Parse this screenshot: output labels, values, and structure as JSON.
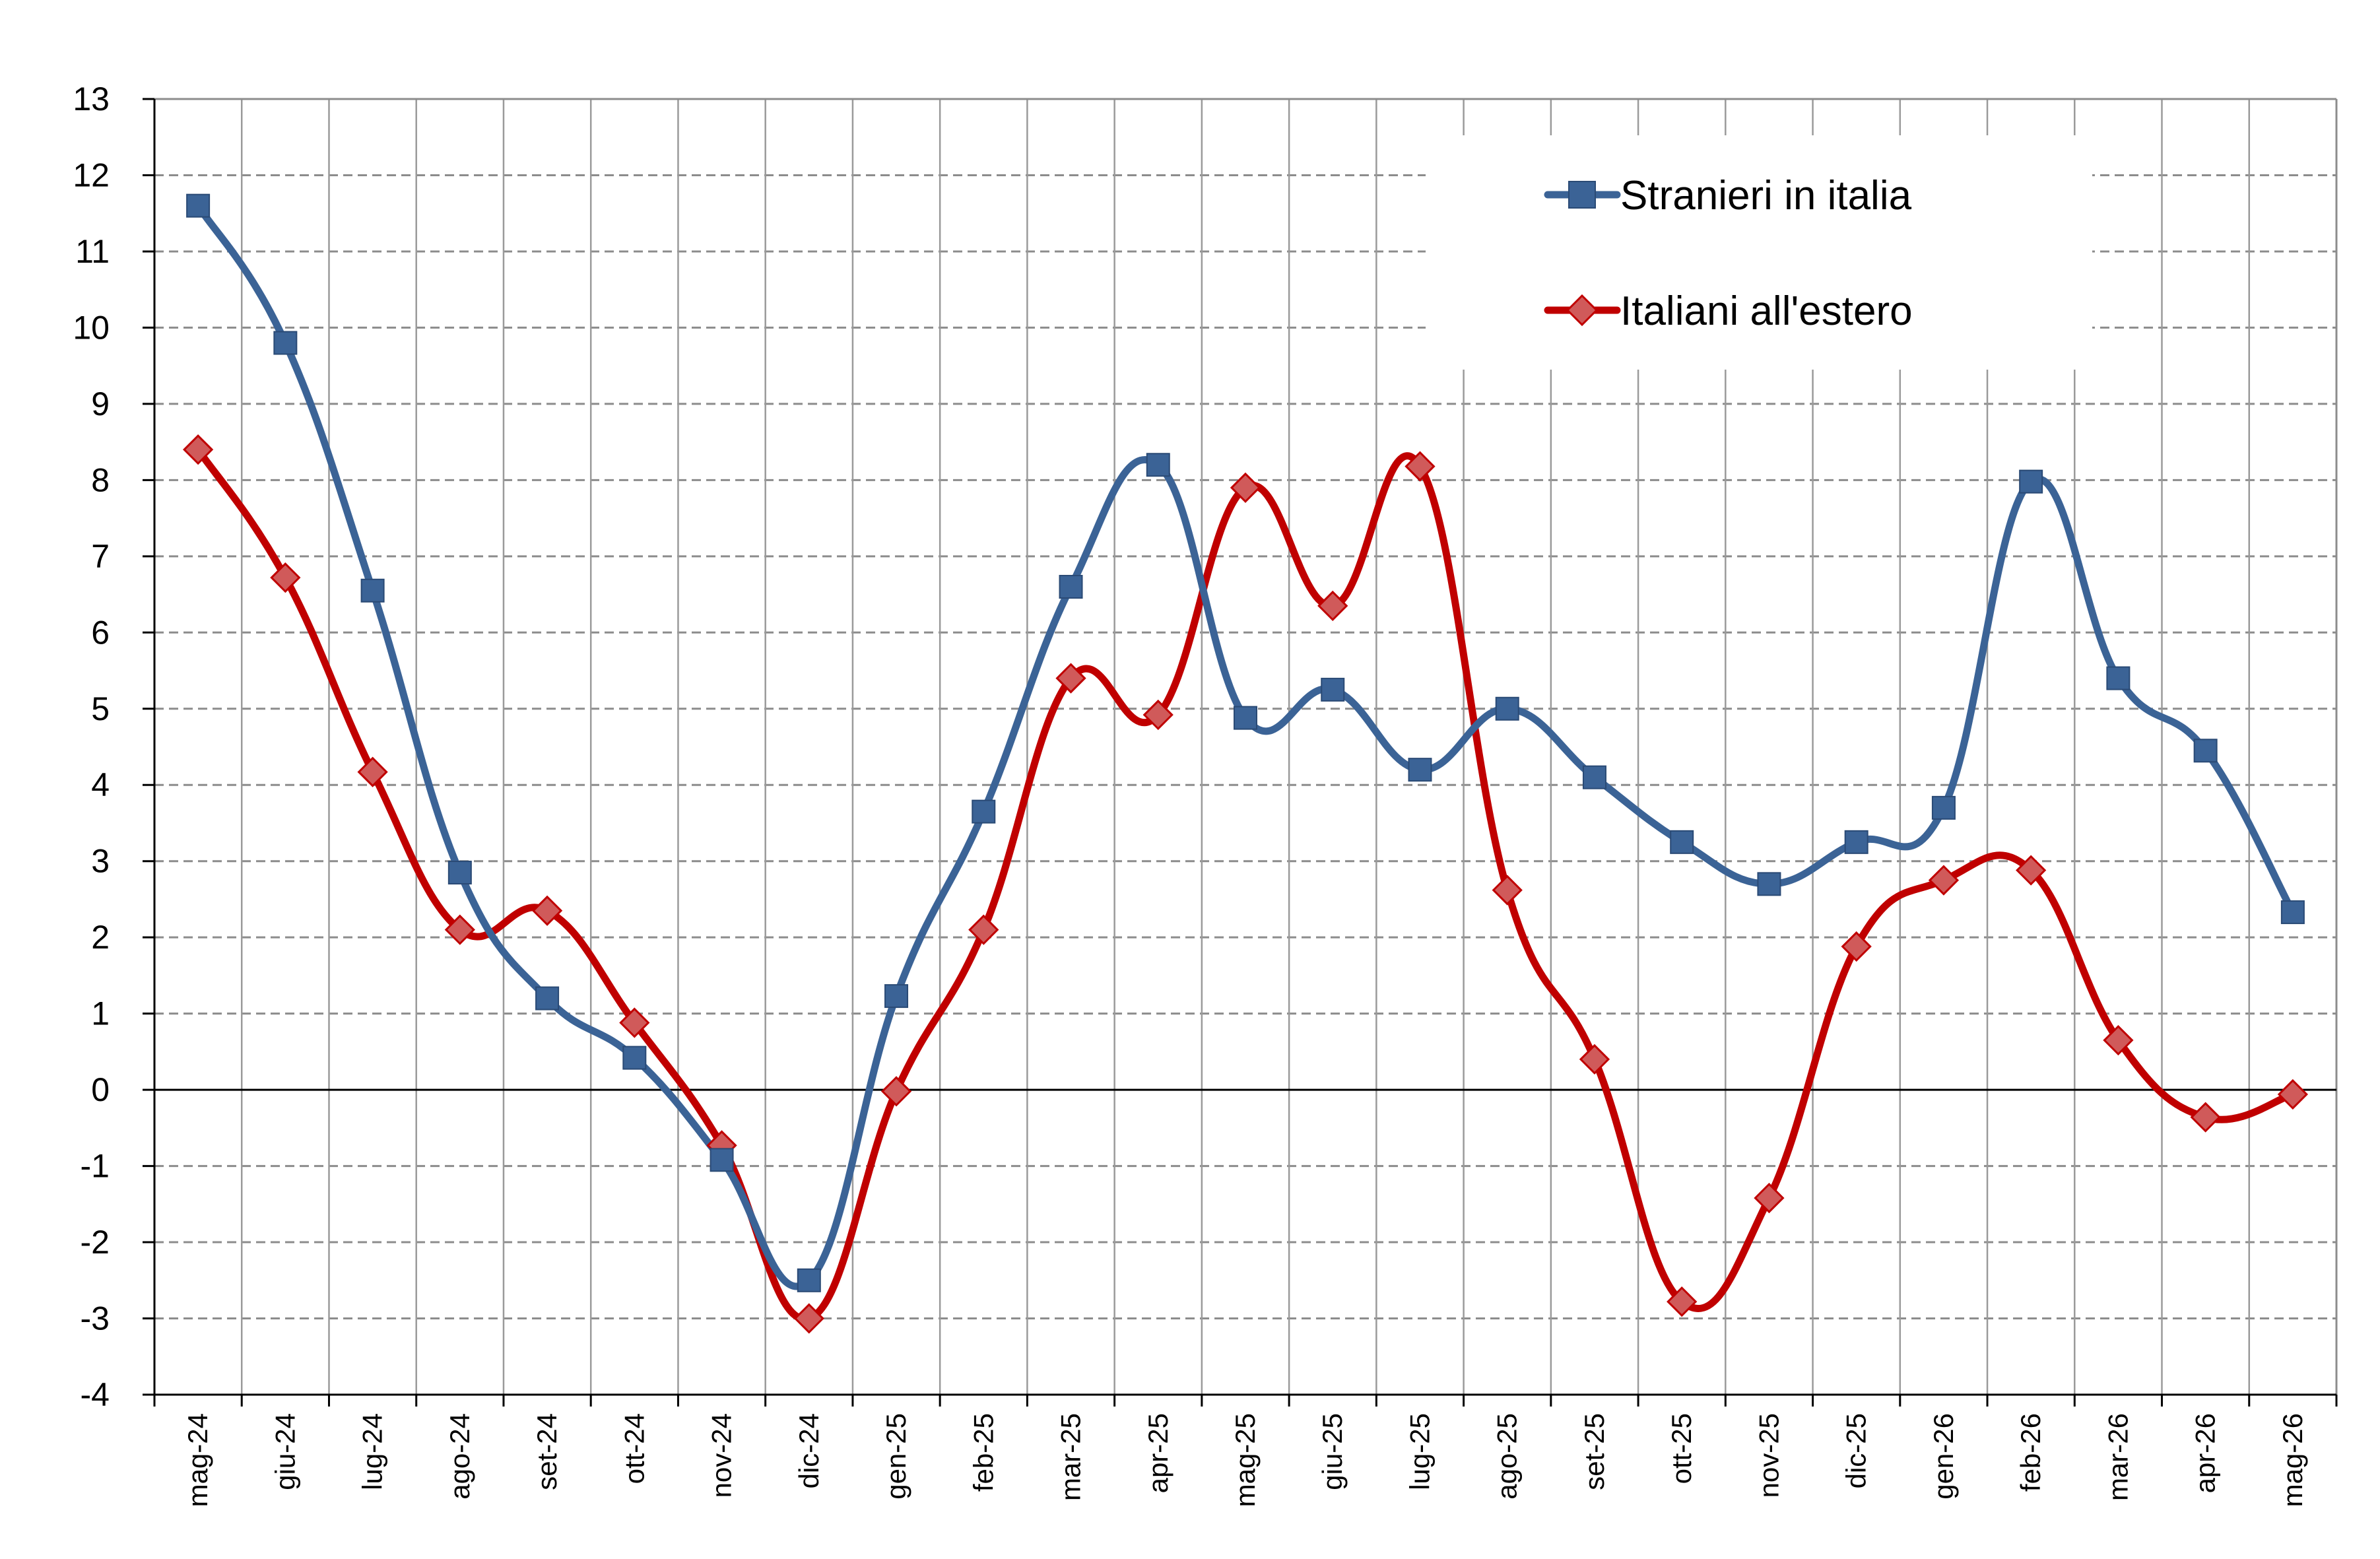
{
  "chart_data": {
    "type": "line",
    "title": "",
    "xlabel": "",
    "ylabel": "",
    "ylim": [
      -4,
      13
    ],
    "yticks": [
      -4,
      -3,
      -2,
      -1,
      0,
      1,
      2,
      3,
      4,
      5,
      6,
      7,
      8,
      9,
      10,
      11,
      12,
      13
    ],
    "grid": true,
    "smoothed": true,
    "legend_position": "top-right",
    "categories": [
      "mag-24",
      "giu-24",
      "lug-24",
      "ago-24",
      "set-24",
      "ott-24",
      "nov-24",
      "dic-24",
      "gen-25",
      "feb-25",
      "mar-25",
      "apr-25",
      "mag-25",
      "giu-25",
      "lug-25",
      "ago-25",
      "set-25",
      "ott-25",
      "nov-25",
      "dic-25",
      "gen-26",
      "feb-26",
      "mar-26",
      "apr-26",
      "mag-26"
    ],
    "series": [
      {
        "name": "Stranieri in italia",
        "color": "#3B6396",
        "marker": "square",
        "values": [
          11.6,
          9.8,
          6.55,
          2.85,
          1.2,
          0.42,
          -0.92,
          -2.5,
          1.23,
          3.65,
          6.6,
          8.2,
          4.88,
          5.25,
          4.2,
          5.0,
          4.1,
          3.25,
          2.7,
          3.25,
          3.7,
          7.98,
          5.4,
          4.45,
          2.33
        ]
      },
      {
        "name": "Italiani all'estero",
        "color": "#C00000",
        "marker_fill": "#D05A5A",
        "marker": "diamond",
        "values": [
          8.4,
          6.72,
          4.17,
          2.1,
          2.35,
          0.88,
          -0.73,
          -3.0,
          -0.02,
          2.1,
          5.4,
          4.92,
          7.9,
          6.35,
          8.18,
          2.62,
          0.4,
          -2.78,
          -1.42,
          1.88,
          2.75,
          2.88,
          0.65,
          -0.36,
          -0.06
        ]
      }
    ]
  }
}
